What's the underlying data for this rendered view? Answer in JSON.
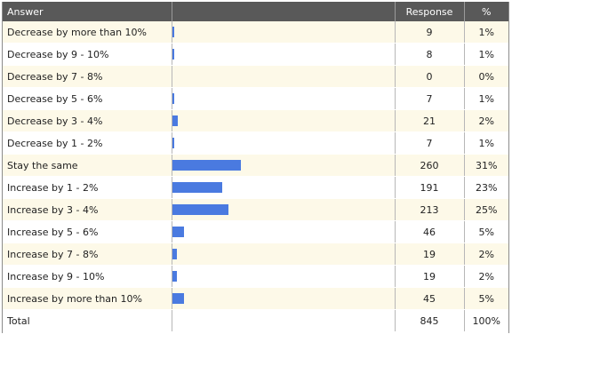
{
  "header": {
    "answer": "Answer",
    "response": "Response",
    "percent": "%"
  },
  "chart_data": {
    "type": "table",
    "bar_color": "#4a7ae0",
    "header_color": "#595959",
    "stripe_color": "#fdf9e8",
    "rows": [
      {
        "answer": "Decrease by more than 10%",
        "response": "9",
        "percent": "1%",
        "value": 9
      },
      {
        "answer": "Decrease by 9 - 10%",
        "response": "8",
        "percent": "1%",
        "value": 8
      },
      {
        "answer": "Decrease by 7 - 8%",
        "response": "0",
        "percent": "0%",
        "value": 0
      },
      {
        "answer": "Decrease by 5 - 6%",
        "response": "7",
        "percent": "1%",
        "value": 7
      },
      {
        "answer": "Decrease by 3 - 4%",
        "response": "21",
        "percent": "2%",
        "value": 21
      },
      {
        "answer": "Decrease by 1 - 2%",
        "response": "7",
        "percent": "1%",
        "value": 7
      },
      {
        "answer": "Stay the same",
        "response": "260",
        "percent": "31%",
        "value": 260
      },
      {
        "answer": "Increase by 1 - 2%",
        "response": "191",
        "percent": "23%",
        "value": 191
      },
      {
        "answer": "Increase by 3 - 4%",
        "response": "213",
        "percent": "25%",
        "value": 213
      },
      {
        "answer": "Increase by 5 - 6%",
        "response": "46",
        "percent": "5%",
        "value": 46
      },
      {
        "answer": "Increase by 7 - 8%",
        "response": "19",
        "percent": "2%",
        "value": 19
      },
      {
        "answer": "Increase by 9 - 10%",
        "response": "19",
        "percent": "2%",
        "value": 19
      },
      {
        "answer": "Increase by more than 10%",
        "response": "45",
        "percent": "5%",
        "value": 45
      }
    ],
    "total": {
      "label": "Total",
      "response": "845",
      "percent": "100%"
    },
    "total_value": 845
  }
}
